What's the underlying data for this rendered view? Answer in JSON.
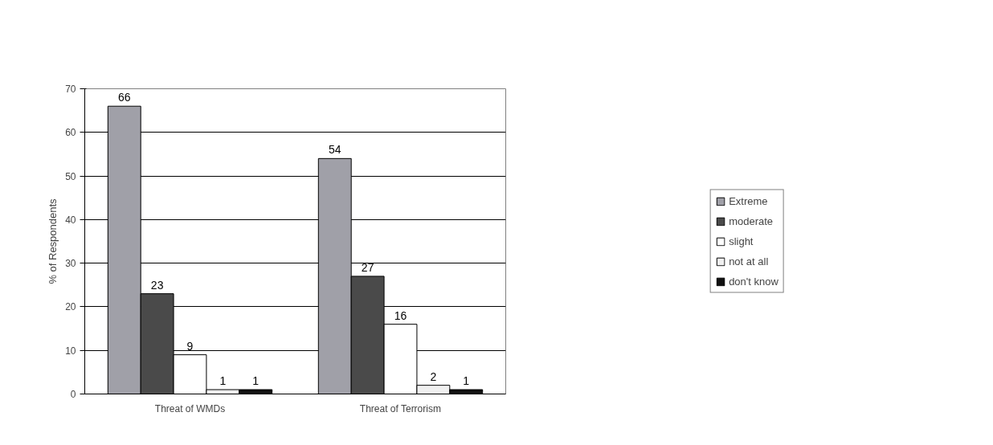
{
  "chart_data": {
    "type": "bar",
    "ylabel": "% of Respondents",
    "categories": [
      "Threat of WMDs",
      "Threat of Terrorism"
    ],
    "series": [
      {
        "name": "Extreme",
        "color": "#a0a0a8",
        "values": [
          66,
          54
        ]
      },
      {
        "name": "moderate",
        "color": "#4a4a4a",
        "values": [
          23,
          27
        ]
      },
      {
        "name": "slight",
        "color": "#ffffff",
        "values": [
          9,
          16
        ]
      },
      {
        "name": "not at all",
        "color": "#f0f0f0",
        "values": [
          1,
          2
        ]
      },
      {
        "name": "don't know",
        "color": "#101010",
        "values": [
          1,
          1
        ]
      }
    ],
    "ylim": [
      0,
      70
    ],
    "yticks": [
      0,
      10,
      20,
      30,
      40,
      50,
      60,
      70
    ],
    "grid": "y",
    "legend": "right",
    "data_labels": true
  }
}
